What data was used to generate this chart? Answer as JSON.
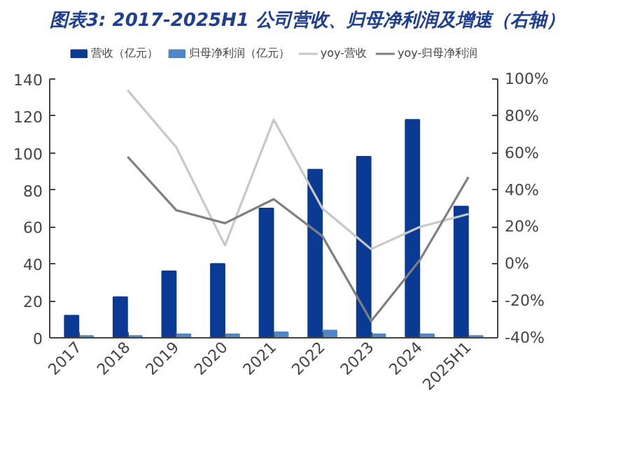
{
  "chart_data": {
    "type": "bar",
    "title": "图表3:  2017-2025H1 公司营收、归母净利润及增速（右轴）",
    "categories": [
      "2017",
      "2018",
      "2019",
      "2020",
      "2021",
      "2022",
      "2023",
      "2024",
      "2025H1"
    ],
    "series": [
      {
        "name": "营收（亿元）",
        "color": "#0a3a94",
        "values": [
          12,
          22,
          36,
          40,
          70,
          91,
          98,
          118,
          71
        ]
      },
      {
        "name": "归母净利润（亿元）",
        "color": "#4f86c6",
        "values": [
          1,
          1,
          2,
          2,
          3,
          4,
          2,
          2,
          1
        ]
      },
      {
        "name": "yoy-营收",
        "type": "line",
        "axis": "y2",
        "color": "#c8c8c8",
        "values": [
          null,
          94,
          63,
          10,
          78,
          30,
          8,
          20,
          27
        ]
      },
      {
        "name": "yoy-归母净利润",
        "type": "line",
        "axis": "y2",
        "color": "#7f7f7f",
        "values": [
          null,
          58,
          29,
          22,
          35,
          15,
          -31,
          2,
          47
        ]
      }
    ],
    "ylim": [
      0,
      140
    ],
    "yticks": [
      0,
      20,
      40,
      60,
      80,
      100,
      120,
      140
    ],
    "y2lim": [
      -40,
      100
    ],
    "y2ticks": [
      {
        "value": -40,
        "label": "-40%"
      },
      {
        "value": -20,
        "label": "-20%"
      },
      {
        "value": 0,
        "label": "0%"
      },
      {
        "value": 20,
        "label": "20%"
      },
      {
        "value": 40,
        "label": "40%"
      },
      {
        "value": 60,
        "label": "60%"
      },
      {
        "value": 80,
        "label": "80%"
      },
      {
        "value": 100,
        "label": "100%"
      }
    ],
    "legend": "top"
  }
}
